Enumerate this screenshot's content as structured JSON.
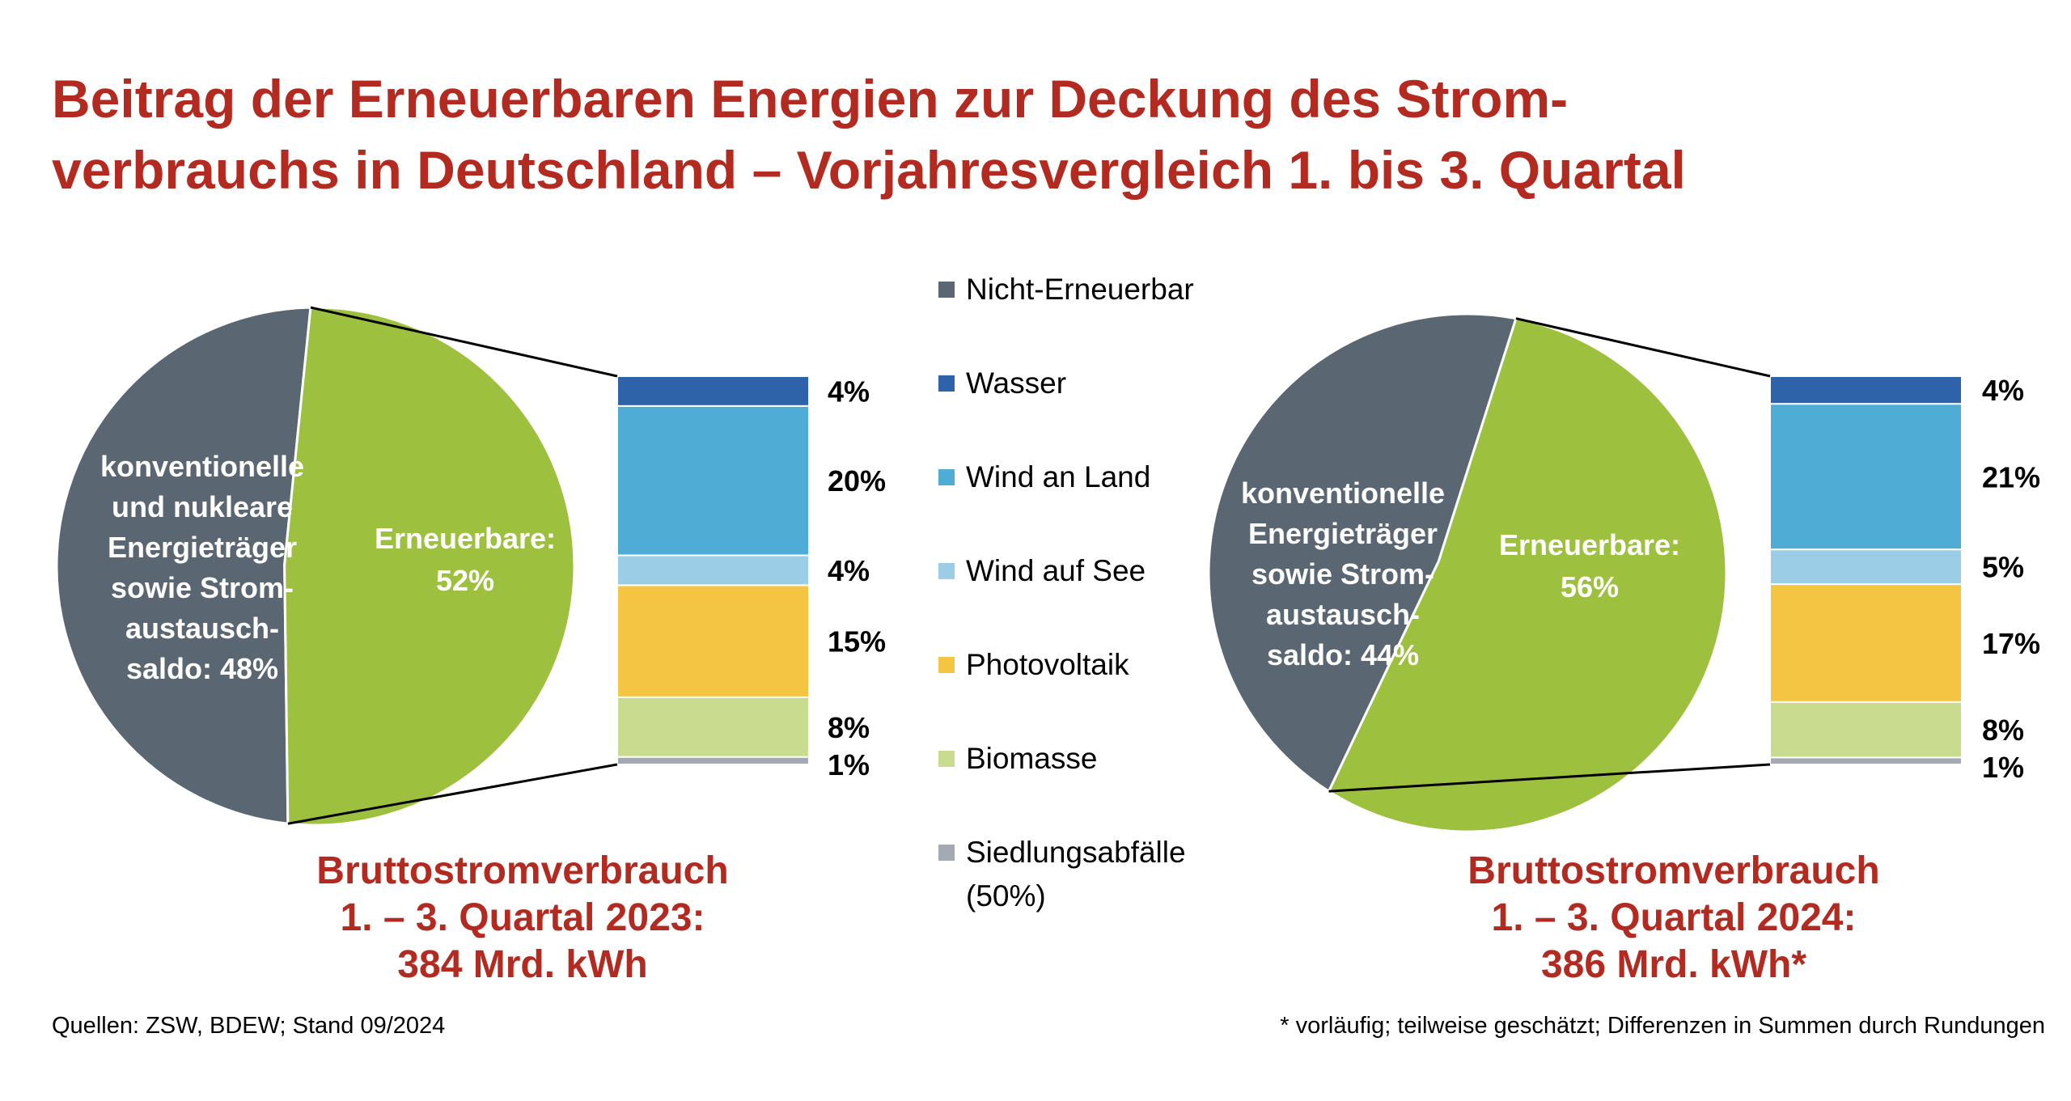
{
  "title_line1": "Beitrag der Erneuerbaren Energien zur Deckung des Strom-",
  "title_line2": "verbrauchs in Deutschland – Vorjahresvergleich 1. bis 3. Quartal",
  "source": "Quellen: ZSW, BDEW; Stand 09/2024",
  "footnote": "* vorläufig; teilweise geschätzt; Differenzen in Summen durch Rundungen",
  "colors": {
    "title": "#b22a20",
    "nicht_erneuerbar": "#5b6673",
    "erneuerbar_pie": "#9dc13f",
    "wasser": "#2e63a9",
    "wind_land": "#4eacd5",
    "wind_see": "#9ccde6",
    "photovoltaik": "#f4c542",
    "biomasse": "#c9db8e",
    "siedlungsabfaelle": "#a3aab3"
  },
  "legend": [
    {
      "label": "Nicht-Erneuerbar",
      "color": "#5b6673"
    },
    {
      "label": "Wasser",
      "color": "#2e63a9"
    },
    {
      "label": "Wind an Land",
      "color": "#4eacd5"
    },
    {
      "label": "Wind auf See",
      "color": "#9ccde6"
    },
    {
      "label": "Photovoltaik",
      "color": "#f4c542"
    },
    {
      "label": "Biomasse",
      "color": "#c9db8e"
    },
    {
      "label": "Siedlungsabfälle",
      "label2": "(50%)",
      "color": "#a3aab3"
    }
  ],
  "captions": [
    {
      "line1": "Bruttostromverbrauch",
      "line2": "1. – 3. Quartal 2023:",
      "line3": "384 Mrd. kWh"
    },
    {
      "line1": "Bruttostromverbrauch",
      "line2": "1. – 3. Quartal 2024:",
      "line3": "386 Mrd. kWh*"
    }
  ],
  "chart_data": [
    {
      "type": "pie",
      "year": "2023",
      "slices": [
        {
          "name": "Nicht-Erneuerbar",
          "value": 48,
          "label_lines": [
            "konventionelle",
            "und nukleare",
            "Energieträger",
            "sowie Strom-",
            "austausch-",
            "saldo: 48%"
          ],
          "color": "#5b6673"
        },
        {
          "name": "Erneuerbare",
          "value": 52,
          "label_lines": [
            "Erneuerbare:",
            "52%"
          ],
          "color": "#9dc13f"
        }
      ],
      "breakdown": {
        "type": "bar",
        "stacked": true,
        "categories": [
          "Wasser",
          "Wind an Land",
          "Wind auf See",
          "Photovoltaik",
          "Biomasse",
          "Siedlungsabfälle"
        ],
        "values": [
          4,
          20,
          4,
          15,
          8,
          1
        ],
        "labels": [
          "4%",
          "20%",
          "4%",
          "15%",
          "8%",
          "1%"
        ]
      }
    },
    {
      "type": "pie",
      "year": "2024",
      "slices": [
        {
          "name": "Nicht-Erneuerbar",
          "value": 44,
          "label_lines": [
            "konventionelle",
            "Energieträger",
            "sowie Strom-",
            "austausch-",
            "saldo: 44%"
          ],
          "color": "#5b6673"
        },
        {
          "name": "Erneuerbare",
          "value": 56,
          "label_lines": [
            "Erneuerbare:",
            "56%"
          ],
          "color": "#9dc13f"
        }
      ],
      "breakdown": {
        "type": "bar",
        "stacked": true,
        "categories": [
          "Wasser",
          "Wind an Land",
          "Wind auf See",
          "Photovoltaik",
          "Biomasse",
          "Siedlungsabfälle"
        ],
        "values": [
          4,
          21,
          5,
          17,
          8,
          1
        ],
        "labels": [
          "4%",
          "21%",
          "5%",
          "17%",
          "8%",
          "1%"
        ]
      }
    }
  ]
}
